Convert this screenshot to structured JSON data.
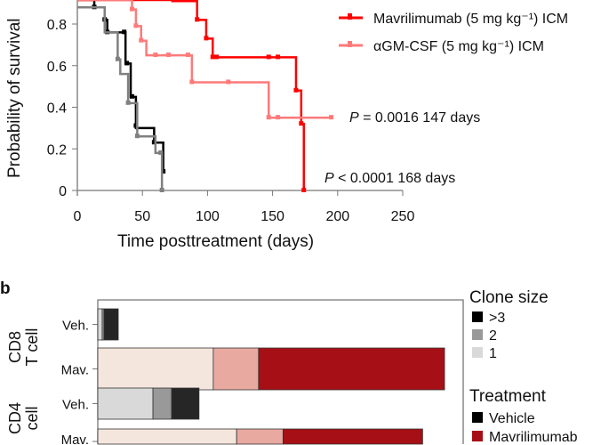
{
  "chart_data": [
    {
      "type": "line",
      "subtype": "kaplan-meier",
      "xlabel": "Time posttreatment (days)",
      "ylabel": "Probability of survival",
      "xlim": [
        0,
        250
      ],
      "ylim": [
        0,
        1
      ],
      "xticks": [
        "0",
        "50",
        "100",
        "150",
        "200",
        "250"
      ],
      "yticks": [
        "0",
        "0.2",
        "0.4",
        "0.6",
        "0.8"
      ],
      "grid": false,
      "legend_placement": "top-right",
      "series": [
        {
          "color": "#000000",
          "steps": [
            [
              0,
              1
            ],
            [
              13,
              0.88
            ],
            [
              21,
              0.82
            ],
            [
              23,
              0.76
            ],
            [
              37,
              0.61
            ],
            [
              41,
              0.45
            ],
            [
              45,
              0.3
            ],
            [
              59,
              0.23
            ],
            [
              66,
              0.09
            ]
          ],
          "censored": [
            [
              13,
              0.88
            ],
            [
              21,
              0.82
            ],
            [
              23,
              0.76
            ],
            [
              36,
              0.76
            ],
            [
              38,
              0.61
            ],
            [
              42,
              0.45
            ],
            [
              45,
              0.31
            ],
            [
              59,
              0.23
            ],
            [
              66,
              0.09
            ]
          ]
        },
        {
          "color": "#808080",
          "steps": [
            [
              0,
              0.88
            ],
            [
              21,
              0.76
            ],
            [
              31,
              0.63
            ],
            [
              33,
              0.56
            ],
            [
              39,
              0.42
            ],
            [
              46,
              0.26
            ],
            [
              60,
              0.18
            ],
            [
              65,
              0
            ]
          ],
          "censored": [
            [
              31,
              0.63
            ],
            [
              39,
              0.42
            ],
            [
              46,
              0.26
            ],
            [
              64,
              0.18
            ],
            [
              65,
              0
            ]
          ]
        },
        {
          "name": "Mavrilimumab (5 mg kg⁻¹) ICM",
          "color": "#ff0000",
          "steps": [
            [
              0,
              1
            ],
            [
              73,
              0.91
            ],
            [
              92,
              0.82
            ],
            [
              99,
              0.73
            ],
            [
              104,
              0.64
            ],
            [
              168,
              0.48
            ],
            [
              172,
              0.32
            ],
            [
              174,
              0
            ]
          ],
          "censored": [
            [
              92,
              0.82
            ],
            [
              99,
              0.73
            ],
            [
              104,
              0.64
            ],
            [
              107,
              0.64
            ],
            [
              147,
              0.64
            ],
            [
              154,
              0.64
            ],
            [
              168,
              0.48
            ],
            [
              172,
              0.32
            ],
            [
              174,
              0
            ]
          ]
        },
        {
          "name": "αGM-CSF (5 mg kg⁻¹) ICM",
          "color": "#ff7a7a",
          "steps": [
            [
              0,
              1
            ],
            [
              42,
              0.87
            ],
            [
              45,
              0.79
            ],
            [
              49,
              0.72
            ],
            [
              53,
              0.65
            ],
            [
              88,
              0.52
            ],
            [
              147,
              0.35
            ],
            [
              195,
              0.35
            ]
          ],
          "censored": [
            [
              42,
              0.87
            ],
            [
              45,
              0.79
            ],
            [
              49,
              0.72
            ],
            [
              60,
              0.65
            ],
            [
              70,
              0.65
            ],
            [
              85,
              0.65
            ],
            [
              88,
              0.52
            ],
            [
              116,
              0.52
            ],
            [
              147,
              0.35
            ],
            [
              154,
              0.35
            ],
            [
              195,
              0.35
            ]
          ]
        }
      ],
      "annotations": [
        {
          "text_p": "P",
          "text": " = 0.0016 147 days"
        },
        {
          "text_p": "P",
          "text": " < 0.0001 168 days"
        }
      ]
    },
    {
      "type": "bar",
      "orientation": "horizontal",
      "stacked": true,
      "panel_label": "b",
      "groups": [
        {
          "label_line1": "CD8",
          "label_line2": "T cell",
          "bars": [
            {
              "label": "Veh.",
              "treatment": "Vehicle",
              "segments": [
                1.2,
                0.5,
                3.9
              ]
            },
            {
              "label": "Mav.",
              "treatment": "Mavrilimumab",
              "segments": [
                31.6,
                12.4,
                50.9
              ]
            }
          ]
        },
        {
          "label_line1": "CD4",
          "label_line2": "cell",
          "bars": [
            {
              "label": "Veh.",
              "treatment": "Vehicle",
              "segments": [
                15.1,
                5.1,
                7.5
              ]
            },
            {
              "label": "Mav.",
              "treatment": "Mavrilimumab",
              "segments": [
                38.0,
                12.7,
                38.2
              ]
            }
          ]
        }
      ],
      "xlim": [
        0,
        100
      ],
      "segment_order": [
        "1",
        "2",
        ">3"
      ],
      "colors": {
        "Vehicle": [
          "#d9d9d9",
          "#999999",
          "#262626"
        ],
        "Mavrilimumab": [
          "#f5e6dd",
          "#e8a9a1",
          "#a50f15"
        ]
      },
      "legend": {
        "clone_size_title": "Clone size",
        "clone_size_items": [
          {
            "label": ">3",
            "color": "#000000"
          },
          {
            "label": "2",
            "color": "#999999"
          },
          {
            "label": "1",
            "color": "#d9d9d9"
          }
        ],
        "treatment_title": "Treatment",
        "treatment_items": [
          {
            "label": "Vehicle",
            "color": "#000000"
          },
          {
            "label": "Mavrilimumab",
            "color": "#a50f15"
          }
        ]
      }
    }
  ]
}
